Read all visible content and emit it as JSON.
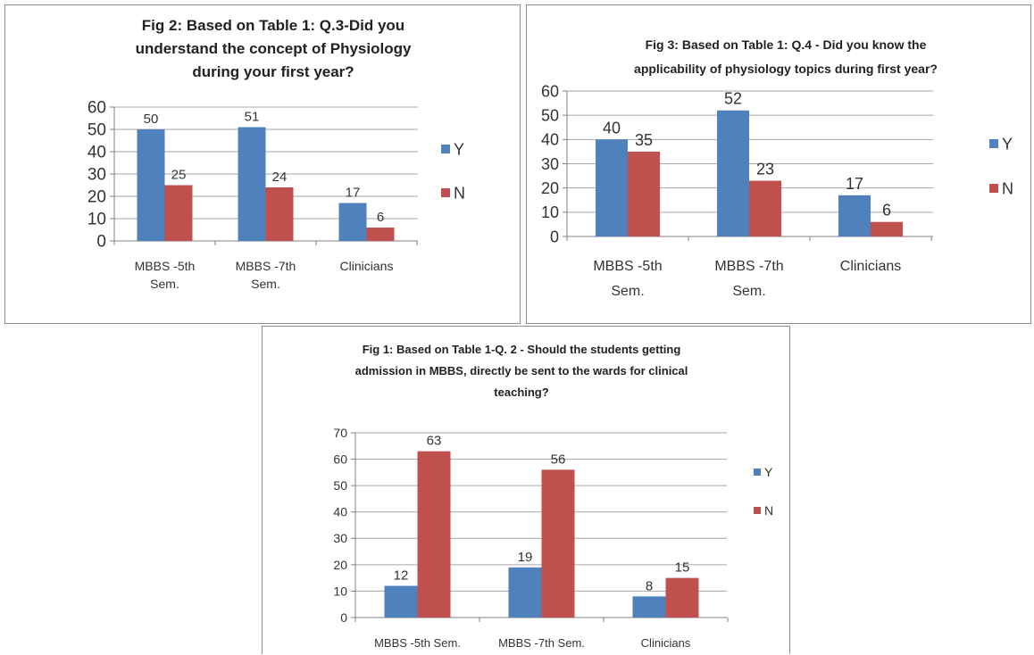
{
  "chart_data": [
    {
      "id": "fig2",
      "type": "bar",
      "title": "Fig 2: Based on Table 1: Q.3-Did you understand the concept of Physiology during your first year?",
      "title_lines": [
        "Fig 2: Based on Table 1: Q.3-Did you",
        "understand the concept of Physiology",
        "during your first year?"
      ],
      "categories": [
        "MBBS -5th Sem.",
        "MBBS -7th Sem.",
        "Clinicians"
      ],
      "category_lines": [
        [
          "MBBS -5th",
          "Sem."
        ],
        [
          "MBBS -7th",
          "Sem."
        ],
        [
          "Clinicians"
        ]
      ],
      "series": [
        {
          "name": "Y",
          "color": "#4f81bd",
          "values": [
            50,
            51,
            17
          ]
        },
        {
          "name": "N",
          "color": "#c0504d",
          "values": [
            25,
            24,
            6
          ]
        }
      ],
      "ylim": [
        0,
        60
      ],
      "yticks": [
        0,
        10,
        20,
        30,
        40,
        50,
        60
      ],
      "grid": true,
      "legend_position": "right"
    },
    {
      "id": "fig3",
      "type": "bar",
      "title": "Fig 3: Based on Table 1: Q.4 - Did you know the applicability of physiology topics during first year?",
      "title_lines": [
        "Fig 3: Based on Table 1: Q.4 - Did you know the",
        "applicability of physiology topics during first year?"
      ],
      "categories": [
        "MBBS -5th Sem.",
        "MBBS -7th Sem.",
        "Clinicians"
      ],
      "category_lines": [
        [
          "MBBS -5th",
          "Sem."
        ],
        [
          "MBBS -7th",
          "Sem."
        ],
        [
          "Clinicians"
        ]
      ],
      "series": [
        {
          "name": "Y",
          "color": "#4f81bd",
          "values": [
            40,
            52,
            17
          ]
        },
        {
          "name": "N",
          "color": "#c0504d",
          "values": [
            35,
            23,
            6
          ]
        }
      ],
      "ylim": [
        0,
        60
      ],
      "yticks": [
        0,
        10,
        20,
        30,
        40,
        50,
        60
      ],
      "grid": true,
      "legend_position": "right"
    },
    {
      "id": "fig1",
      "type": "bar",
      "title": "Fig 1: Based on Table 1-Q. 2 - Should the students getting admission in MBBS, directly be sent to the wards for clinical teaching?",
      "title_lines": [
        "Fig 1: Based on Table 1-Q. 2 - Should the students getting",
        "admission in MBBS, directly be sent to the wards for clinical",
        "teaching?"
      ],
      "categories": [
        "MBBS -5th Sem.",
        "MBBS -7th Sem.",
        "Clinicians"
      ],
      "category_lines": [
        [
          "MBBS -5th Sem."
        ],
        [
          "MBBS -7th Sem."
        ],
        [
          "Clinicians"
        ]
      ],
      "series": [
        {
          "name": "Y",
          "color": "#4f81bd",
          "values": [
            12,
            19,
            8
          ]
        },
        {
          "name": "N",
          "color": "#c0504d",
          "values": [
            63,
            56,
            15
          ]
        }
      ],
      "ylim": [
        0,
        70
      ],
      "yticks": [
        0,
        10,
        20,
        30,
        40,
        50,
        60,
        70
      ],
      "grid": true,
      "legend_position": "right"
    }
  ]
}
